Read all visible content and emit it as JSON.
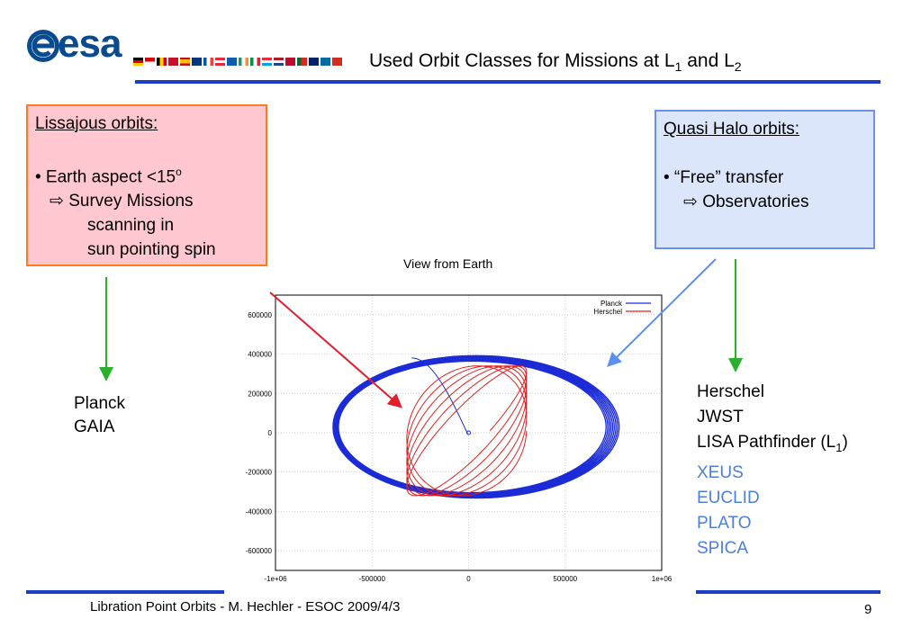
{
  "header": {
    "logo_text": "esa",
    "title_main": "Used Orbit Classes for Missions at L",
    "title_sub1": "1",
    "title_and": " and L",
    "title_sub2": "2"
  },
  "colors": {
    "accent_rule": "#1a3fc4",
    "lissajous_fill": "#ffc7cf",
    "lissajous_border": "#ff7a1c",
    "halo_fill": "#dce6fb",
    "halo_border": "#6f8ff0",
    "planck_line": "#1b2cd6",
    "herschel_line": "#e02020",
    "future_missions": "#4d7fd9"
  },
  "lissajous_box": {
    "heading": "Lissajous orbits:",
    "bullet": "• Earth aspect <15",
    "bullet_sup": "o",
    "arrow_line": "⇨ Survey Missions",
    "line2": "scanning in",
    "line3": "sun pointing spin"
  },
  "halo_box": {
    "heading": "Quasi Halo orbits:",
    "bullet": "• “Free” transfer",
    "arrow_line": "⇨ Observatories"
  },
  "view_caption": "View from Earth",
  "planck_list": [
    "Planck",
    "GAIA"
  ],
  "observatory_list": {
    "herschel": "Herschel",
    "jwst": "JWST",
    "lisa": "LISA Pathfinder (L",
    "lisa_sub": "1",
    "lisa_close": ")",
    "future": [
      "XEUS",
      "EUCLID",
      "PLATO",
      "SPICA"
    ]
  },
  "chart_data": {
    "type": "line",
    "title": "",
    "xlabel": "",
    "ylabel": "",
    "xlim": [
      -1000000,
      1000000
    ],
    "ylim": [
      -700000,
      700000
    ],
    "xticks": [
      "-1e+06",
      "-500000",
      "0",
      "500000",
      "1e+06"
    ],
    "yticks": [
      "600000",
      "400000",
      "200000",
      "0",
      "-200000",
      "-400000",
      "-600000"
    ],
    "grid": true,
    "legend_position": "top-right",
    "series": [
      {
        "name": "Planck",
        "color": "#1b2cd6",
        "shape": "halo-ellipse",
        "center": [
          30000,
          30000
        ],
        "semi_axes": [
          720000,
          350000
        ],
        "loops": 9
      },
      {
        "name": "Herschel",
        "color": "#e02020",
        "shape": "lissajous",
        "center": [
          -10000,
          10000
        ],
        "amplitudes": [
          310000,
          330000
        ],
        "loops": 6
      }
    ]
  },
  "footer": {
    "text": "Libration Point Orbits -  M. Hechler - ESOC 2009/4/3",
    "page": "9"
  }
}
